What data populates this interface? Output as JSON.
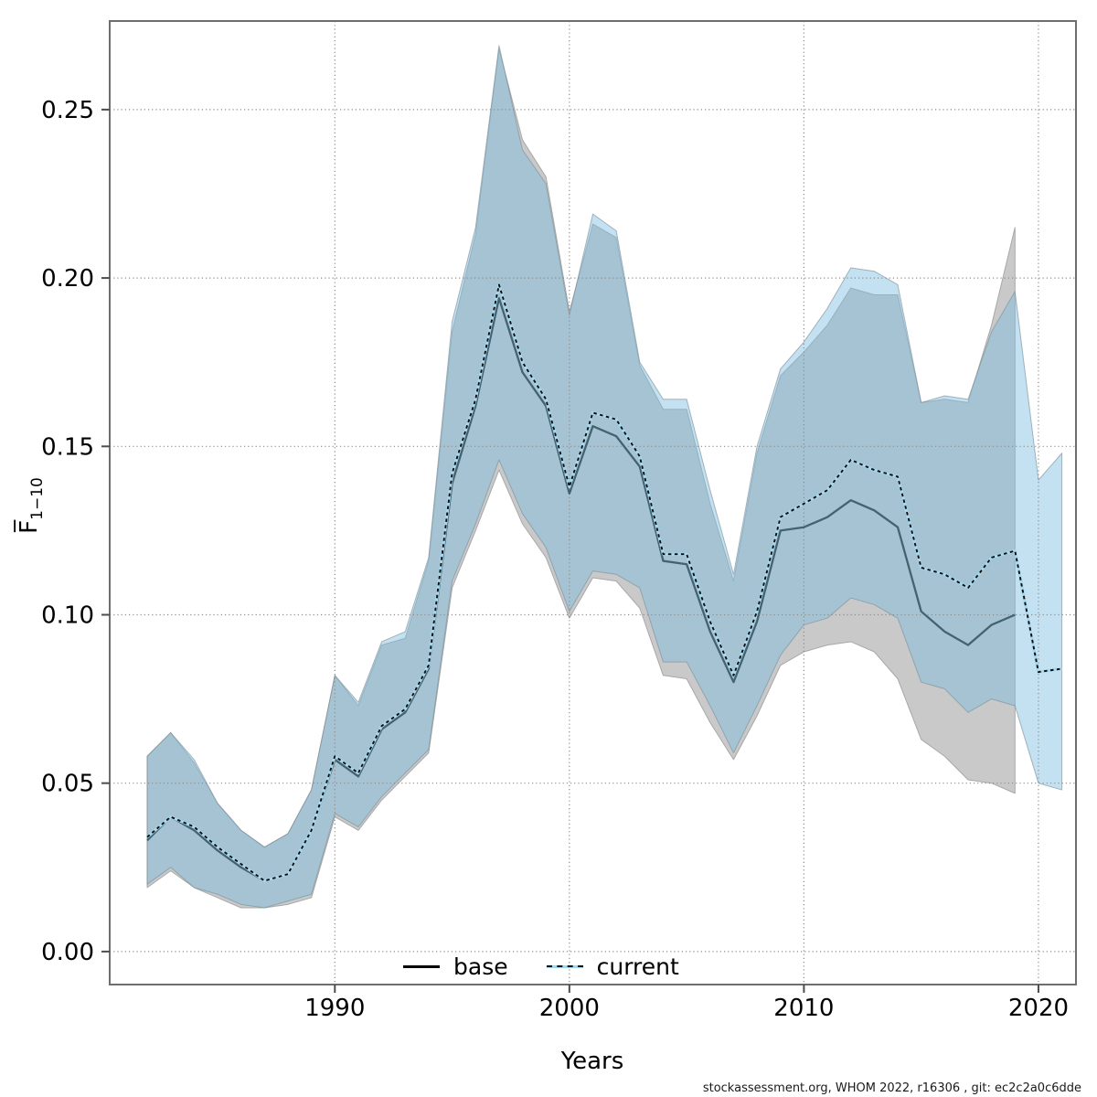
{
  "figure": {
    "xlabel": "Years",
    "ylabel_main": "F̅",
    "ylabel_sub": "1−10",
    "watermark": "stockassessment.org, WHOM 2022, r16306 , git: ec2c2a0c6dde"
  },
  "legend": {
    "items": [
      {
        "label": "base"
      },
      {
        "label": "current"
      }
    ]
  },
  "chart_data": {
    "type": "line",
    "title": "",
    "xlabel": "Years",
    "ylabel": "Fbar 1-10",
    "grid": true,
    "legend_position": "bottom-center-inside",
    "xlim": [
      1980.4,
      2021.6
    ],
    "ylim": [
      -0.0098,
      0.2763
    ],
    "x_ticks": [
      1990,
      2000,
      2010,
      2020
    ],
    "x_tick_labels": [
      "1990",
      "2000",
      "2010",
      "2020"
    ],
    "y_ticks": [
      0.0,
      0.05,
      0.1,
      0.15,
      0.2,
      0.25
    ],
    "y_tick_labels": [
      "0.00",
      "0.05",
      "0.10",
      "0.15",
      "0.20",
      "0.25"
    ],
    "colors": {
      "grid": "#8c8c8c",
      "border": "#6e6e6e",
      "tick": "#4d4d4d",
      "base_line": "#44626f",
      "base_band": "#c9c9c9",
      "current_dash": "#0d0d0d",
      "current_underlay": "#a5d8ee",
      "current_band": "rgba(125,188,223,0.45)"
    },
    "series": [
      {
        "name": "base",
        "style": "solid",
        "line_color": "#44626f",
        "band_fill": "#c9c9c9",
        "band_stroke": "#a8a8a8",
        "years": [
          1982,
          1983,
          1984,
          1985,
          1986,
          1987,
          1988,
          1989,
          1990,
          1991,
          1992,
          1993,
          1994,
          1995,
          1996,
          1997,
          1998,
          1999,
          2000,
          2001,
          2002,
          2003,
          2004,
          2005,
          2006,
          2007,
          2008,
          2009,
          2010,
          2011,
          2012,
          2013,
          2014,
          2015,
          2016,
          2017,
          2018,
          2019
        ],
        "mean": [
          0.033,
          0.04,
          0.036,
          0.03,
          0.025,
          0.021,
          0.023,
          0.036,
          0.057,
          0.052,
          0.066,
          0.071,
          0.084,
          0.139,
          0.162,
          0.194,
          0.172,
          0.162,
          0.136,
          0.156,
          0.153,
          0.144,
          0.116,
          0.115,
          0.095,
          0.08,
          0.098,
          0.125,
          0.126,
          0.129,
          0.134,
          0.131,
          0.126,
          0.101,
          0.095,
          0.091,
          0.097,
          0.1
        ],
        "lo": [
          0.019,
          0.024,
          0.019,
          0.016,
          0.013,
          0.013,
          0.014,
          0.016,
          0.04,
          0.036,
          0.045,
          0.052,
          0.059,
          0.108,
          0.125,
          0.143,
          0.127,
          0.117,
          0.099,
          0.111,
          0.11,
          0.102,
          0.082,
          0.081,
          0.068,
          0.057,
          0.07,
          0.085,
          0.089,
          0.091,
          0.092,
          0.089,
          0.081,
          0.063,
          0.058,
          0.051,
          0.05,
          0.047
        ],
        "hi": [
          0.058,
          0.065,
          0.056,
          0.044,
          0.036,
          0.031,
          0.035,
          0.048,
          0.082,
          0.073,
          0.091,
          0.093,
          0.116,
          0.184,
          0.213,
          0.268,
          0.241,
          0.23,
          0.19,
          0.216,
          0.212,
          0.174,
          0.161,
          0.161,
          0.133,
          0.11,
          0.148,
          0.171,
          0.178,
          0.186,
          0.197,
          0.195,
          0.195,
          0.163,
          0.164,
          0.163,
          0.186,
          0.215
        ]
      },
      {
        "name": "current",
        "style": "dotted",
        "line_color": "#0d0d0d",
        "dash": "3.5 3.5",
        "underlay": "#a5d8ee",
        "band_fill": "rgba(125,188,223,0.45)",
        "band_stroke": "rgba(125,145,155,0.65)",
        "years": [
          1982,
          1983,
          1984,
          1985,
          1986,
          1987,
          1988,
          1989,
          1990,
          1991,
          1992,
          1993,
          1994,
          1995,
          1996,
          1997,
          1998,
          1999,
          2000,
          2001,
          2002,
          2003,
          2004,
          2005,
          2006,
          2007,
          2008,
          2009,
          2010,
          2011,
          2012,
          2013,
          2014,
          2015,
          2016,
          2017,
          2018,
          2019,
          2020,
          2021
        ],
        "mean": [
          0.034,
          0.04,
          0.037,
          0.031,
          0.026,
          0.021,
          0.023,
          0.036,
          0.058,
          0.053,
          0.067,
          0.072,
          0.085,
          0.142,
          0.164,
          0.198,
          0.175,
          0.164,
          0.138,
          0.16,
          0.158,
          0.147,
          0.118,
          0.118,
          0.098,
          0.082,
          0.101,
          0.129,
          0.133,
          0.137,
          0.146,
          0.143,
          0.141,
          0.114,
          0.112,
          0.108,
          0.117,
          0.119,
          0.083,
          0.084
        ],
        "lo": [
          0.02,
          0.025,
          0.019,
          0.017,
          0.014,
          0.013,
          0.015,
          0.017,
          0.041,
          0.037,
          0.046,
          0.053,
          0.06,
          0.11,
          0.127,
          0.146,
          0.13,
          0.12,
          0.101,
          0.113,
          0.112,
          0.108,
          0.086,
          0.086,
          0.073,
          0.059,
          0.073,
          0.088,
          0.097,
          0.099,
          0.105,
          0.103,
          0.099,
          0.08,
          0.078,
          0.071,
          0.075,
          0.073,
          0.05,
          0.048
        ],
        "hi": [
          0.058,
          0.065,
          0.057,
          0.044,
          0.036,
          0.031,
          0.035,
          0.048,
          0.082,
          0.074,
          0.092,
          0.095,
          0.117,
          0.187,
          0.215,
          0.269,
          0.238,
          0.228,
          0.189,
          0.219,
          0.214,
          0.175,
          0.164,
          0.164,
          0.137,
          0.112,
          0.15,
          0.173,
          0.181,
          0.191,
          0.203,
          0.202,
          0.198,
          0.163,
          0.165,
          0.164,
          0.184,
          0.196,
          0.14,
          0.148
        ]
      }
    ]
  }
}
